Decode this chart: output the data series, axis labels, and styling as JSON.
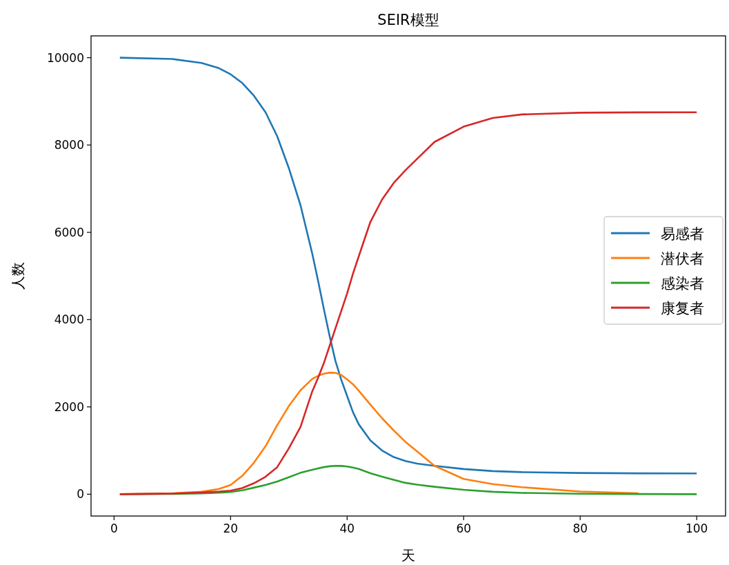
{
  "chart_data": {
    "type": "line",
    "title": "SEIR模型",
    "xlabel": "天",
    "ylabel": "人数",
    "x": [
      1,
      10,
      15,
      18,
      20,
      22,
      24,
      26,
      28,
      30,
      32,
      34,
      35,
      36,
      37,
      38,
      39,
      40,
      41,
      42,
      44,
      46,
      48,
      50,
      52,
      55,
      60,
      65,
      70,
      80,
      90,
      100
    ],
    "series": [
      {
        "name": "易感者",
        "color": "#1f77b4",
        "values": [
          10000,
          9970,
          9880,
          9760,
          9620,
          9420,
          9130,
          8750,
          8200,
          7470,
          6620,
          5520,
          4900,
          4250,
          3620,
          3050,
          2620,
          2250,
          1880,
          1600,
          1230,
          1000,
          850,
          760,
          700,
          650,
          577,
          530,
          505,
          486,
          478,
          475
        ]
      },
      {
        "name": "潜伏者",
        "color": "#ff7f0e",
        "values": [
          0,
          20,
          55,
          120,
          210,
          420,
          720,
          1100,
          1580,
          2020,
          2380,
          2640,
          2710,
          2760,
          2785,
          2780,
          2730,
          2630,
          2520,
          2370,
          2050,
          1740,
          1460,
          1200,
          980,
          650,
          350,
          230,
          160,
          60,
          20,
          null
        ]
      },
      {
        "name": "感染者",
        "color": "#2ca02c",
        "values": [
          0,
          5,
          20,
          35,
          50,
          90,
          150,
          210,
          290,
          390,
          490,
          560,
          590,
          620,
          640,
          650,
          648,
          635,
          610,
          580,
          480,
          400,
          330,
          260,
          220,
          170,
          100,
          55,
          30,
          10,
          3,
          0
        ]
      },
      {
        "name": "康复者",
        "color": "#d62728",
        "values": [
          0,
          15,
          40,
          60,
          80,
          140,
          250,
          400,
          620,
          1050,
          1540,
          2350,
          2660,
          3000,
          3400,
          3800,
          4200,
          4600,
          5050,
          5450,
          6240,
          6750,
          7130,
          7420,
          7680,
          8070,
          8420,
          8620,
          8700,
          8740,
          8748,
          8750
        ]
      }
    ],
    "xlim": [
      -3.95,
      104.95
    ],
    "ylim": [
      -500,
      10500
    ],
    "xticks": [
      0,
      20,
      40,
      60,
      80,
      100
    ],
    "yticks": [
      0,
      2000,
      4000,
      6000,
      8000,
      10000
    ],
    "legend": "center right",
    "grid": false,
    "marker": "none",
    "line_style": "solid"
  }
}
